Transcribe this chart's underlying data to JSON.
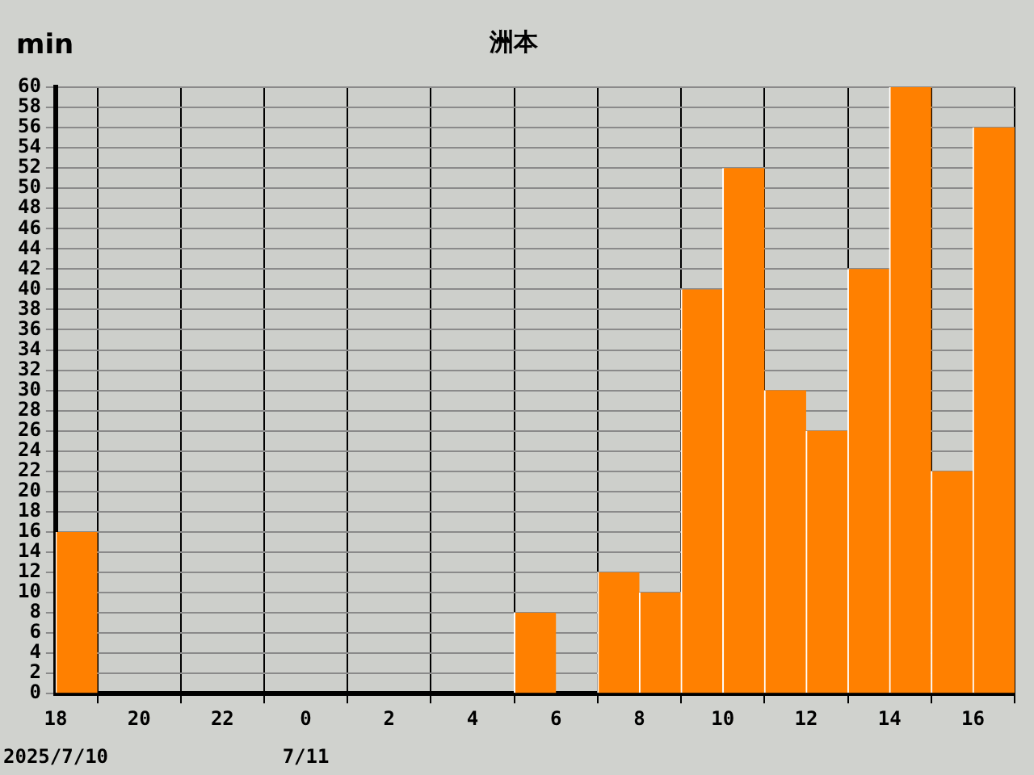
{
  "chart_data": {
    "type": "bar",
    "title": "洲本",
    "ylabel": "min",
    "x": [
      "2025-07-10T18:30",
      "2025-07-10T19:30",
      "2025-07-10T20:30",
      "2025-07-10T21:30",
      "2025-07-10T22:30",
      "2025-07-10T23:30",
      "2025-07-11T00:30",
      "2025-07-11T01:30",
      "2025-07-11T02:30",
      "2025-07-11T03:30",
      "2025-07-11T04:30",
      "2025-07-11T05:30",
      "2025-07-11T06:30",
      "2025-07-11T07:30",
      "2025-07-11T08:30",
      "2025-07-11T09:30",
      "2025-07-11T10:30",
      "2025-07-11T11:30",
      "2025-07-11T12:30",
      "2025-07-11T13:30",
      "2025-07-11T14:30",
      "2025-07-11T15:30",
      "2025-07-11T16:30"
    ],
    "values": [
      16,
      0,
      0,
      0,
      0,
      0,
      0,
      0,
      0,
      0,
      0,
      8,
      0,
      12,
      10,
      40,
      52,
      30,
      26,
      42,
      60,
      22,
      56
    ],
    "color": "#ff8000",
    "xlim": [
      "2025-07-10T18:00",
      "2025-07-11T17:00"
    ],
    "xticks": [
      {
        "value": "2025-07-10T18:00",
        "label": "18"
      },
      {
        "value": "2025-07-10T20:00",
        "label": "20"
      },
      {
        "value": "2025-07-10T22:00",
        "label": "22"
      },
      {
        "value": "2025-07-11T00:00",
        "label": "0"
      },
      {
        "value": "2025-07-11T02:00",
        "label": "2"
      },
      {
        "value": "2025-07-11T04:00",
        "label": "4"
      },
      {
        "value": "2025-07-11T06:00",
        "label": "6"
      },
      {
        "value": "2025-07-11T08:00",
        "label": "8"
      },
      {
        "value": "2025-07-11T10:00",
        "label": "10"
      },
      {
        "value": "2025-07-11T12:00",
        "label": "12"
      },
      {
        "value": "2025-07-11T14:00",
        "label": "14"
      },
      {
        "value": "2025-07-11T16:00",
        "label": "16"
      }
    ],
    "ylim": [
      0,
      60
    ],
    "yticks": [
      0,
      2,
      4,
      6,
      8,
      10,
      12,
      14,
      16,
      18,
      20,
      22,
      24,
      26,
      28,
      30,
      32,
      34,
      36,
      38,
      40,
      42,
      44,
      46,
      48,
      50,
      52,
      54,
      56,
      58,
      60
    ],
    "grid": true,
    "legend": false,
    "annotations": [
      "2025/7/10",
      "7/11"
    ]
  }
}
